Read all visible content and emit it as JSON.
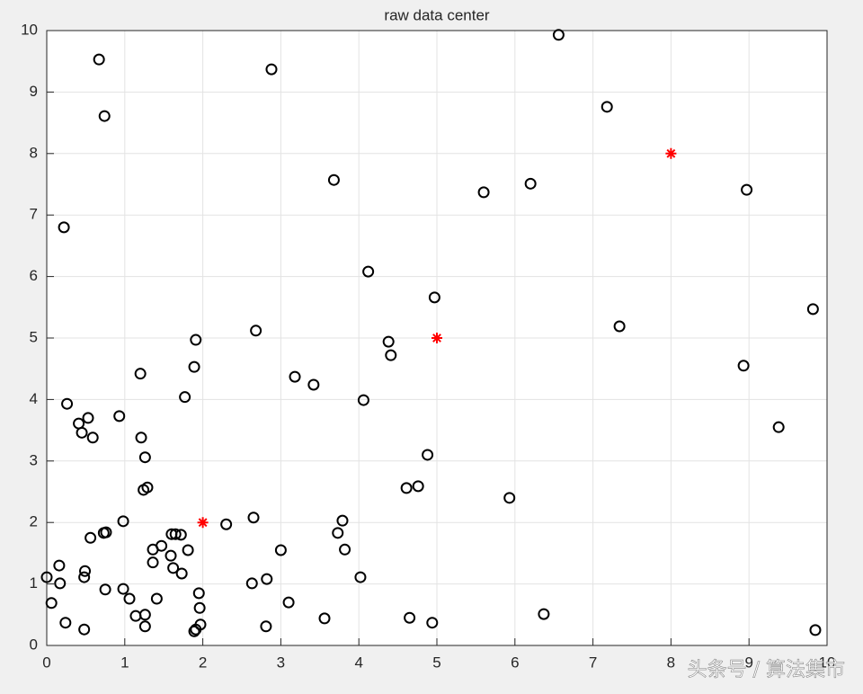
{
  "chart_data": {
    "type": "scatter",
    "title": "raw data center",
    "xlim": [
      0,
      10
    ],
    "ylim": [
      0,
      10
    ],
    "xticks": [
      0,
      1,
      2,
      3,
      4,
      5,
      6,
      7,
      8,
      9,
      10
    ],
    "yticks": [
      0,
      1,
      2,
      3,
      4,
      5,
      6,
      7,
      8,
      9,
      10
    ],
    "grid": true,
    "series": [
      {
        "marker": "o",
        "color": "#000000",
        "x": [
          6.56,
          0.67,
          2.88,
          0.74,
          7.18,
          3.68,
          6.2,
          5.6,
          8.97,
          0.22,
          4.12,
          4.97,
          9.82,
          7.34,
          2.68,
          1.91,
          4.38,
          4.41,
          1.89,
          8.93,
          1.2,
          3.18,
          3.42,
          1.77,
          4.06,
          0.26,
          0.93,
          0.53,
          0.41,
          0.45,
          0.59,
          1.21,
          9.38,
          4.88,
          1.26,
          1.29,
          1.24,
          4.61,
          4.76,
          5.93,
          2.65,
          3.79,
          0.98,
          2.3,
          3.73,
          0.73,
          0.76,
          0.56,
          1.6,
          1.65,
          1.72,
          1.47,
          1.36,
          1.81,
          3.0,
          3.82,
          1.59,
          0.16,
          1.36,
          1.62,
          0.49,
          1.73,
          0.0,
          0.48,
          4.02,
          2.82,
          0.17,
          2.63,
          0.98,
          0.75,
          1.95,
          1.06,
          1.41,
          3.1,
          0.06,
          1.96,
          1.14,
          1.26,
          6.37,
          3.56,
          4.65,
          0.24,
          1.26,
          1.97,
          2.81,
          4.94,
          0.48,
          1.89,
          1.91,
          9.85
        ],
        "values": [
          9.93,
          9.53,
          9.37,
          8.61,
          8.76,
          7.57,
          7.51,
          7.37,
          7.41,
          6.8,
          6.08,
          5.66,
          5.47,
          5.19,
          5.12,
          4.97,
          4.94,
          4.72,
          4.53,
          4.55,
          4.42,
          4.37,
          4.24,
          4.04,
          3.99,
          3.93,
          3.73,
          3.7,
          3.61,
          3.46,
          3.38,
          3.38,
          3.55,
          3.1,
          3.06,
          2.57,
          2.53,
          2.56,
          2.59,
          2.4,
          2.08,
          2.03,
          2.02,
          1.97,
          1.83,
          1.83,
          1.84,
          1.75,
          1.81,
          1.81,
          1.8,
          1.62,
          1.56,
          1.55,
          1.55,
          1.56,
          1.46,
          1.3,
          1.35,
          1.26,
          1.21,
          1.17,
          1.11,
          1.11,
          1.11,
          1.08,
          1.01,
          1.01,
          0.92,
          0.91,
          0.85,
          0.76,
          0.76,
          0.7,
          0.69,
          0.61,
          0.48,
          0.5,
          0.51,
          0.44,
          0.45,
          0.37,
          0.31,
          0.34,
          0.31,
          0.37,
          0.26,
          0.23,
          0.26,
          0.25
        ]
      },
      {
        "marker": "*",
        "color": "#ff0000",
        "x": [
          2,
          5,
          8
        ],
        "values": [
          2,
          5,
          8
        ]
      }
    ],
    "watermark": "头条号 / 算法集市"
  }
}
